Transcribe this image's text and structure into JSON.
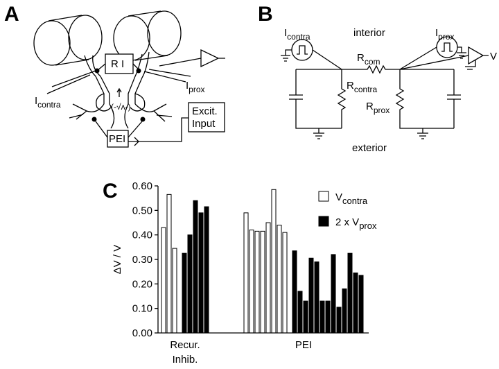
{
  "panel_a": {
    "label": "A",
    "ri": "R I",
    "i_contra": [
      "I",
      "contra"
    ],
    "i_prox": [
      "I",
      "prox"
    ],
    "excit": [
      "Excit.",
      "Input"
    ],
    "pei": "PEI"
  },
  "panel_b": {
    "label": "B",
    "i_contra": [
      "I",
      "contra"
    ],
    "i_prox": [
      "I",
      "prox"
    ],
    "interior": "interior",
    "exterior": "exterior",
    "r_com": [
      "R",
      "com"
    ],
    "r_contra": [
      "R",
      "contra"
    ],
    "r_prox": [
      "R",
      "prox"
    ],
    "v": "V"
  },
  "chart_data": {
    "type": "bar",
    "panel_label": "C",
    "y_label": "ΔV / V",
    "categories": [
      [
        "Recur.",
        "Inhib."
      ],
      [
        "PEI"
      ]
    ],
    "series": [
      {
        "name": [
          "V",
          "contra"
        ],
        "color": "#ffffff",
        "values": [
          [
            0.43,
            0.565,
            0.345
          ],
          [
            0.49,
            0.42,
            0.415,
            0.415,
            0.45,
            0.585,
            0.44,
            0.41
          ]
        ]
      },
      {
        "name": [
          "2 x V",
          "prox"
        ],
        "color": "#000000",
        "values": [
          [
            0.325,
            0.4,
            0.54,
            0.49,
            0.515
          ],
          [
            0.335,
            0.17,
            0.13,
            0.305,
            0.29,
            0.13,
            0.13,
            0.32,
            0.105,
            0.18,
            0.325,
            0.245,
            0.235
          ]
        ]
      }
    ],
    "ylim": [
      0,
      0.6
    ],
    "yticks": [
      {
        "value": 0,
        "label": "0.00"
      },
      {
        "value": 0.1,
        "label": "0.10"
      },
      {
        "value": 0.2,
        "label": "0.20"
      },
      {
        "value": 0.3,
        "label": "0.30"
      },
      {
        "value": 0.4,
        "label": "0.40"
      },
      {
        "value": 0.5,
        "label": "0.50"
      },
      {
        "value": 0.6,
        "label": "0.60"
      }
    ]
  }
}
